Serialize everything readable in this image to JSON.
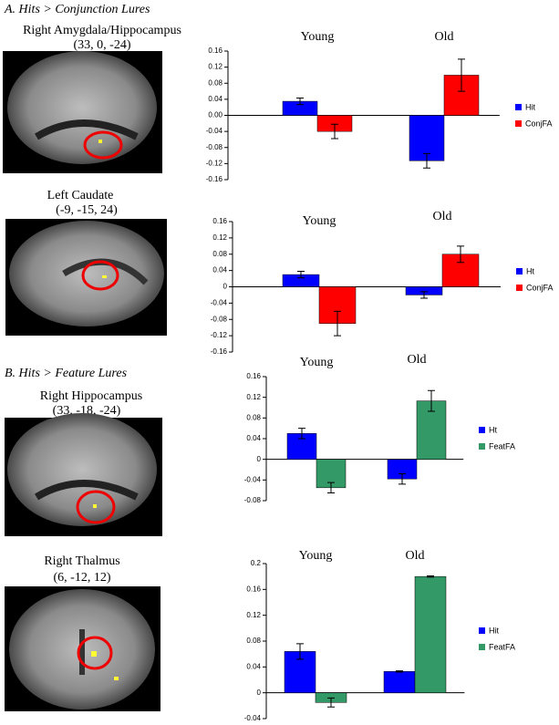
{
  "sections": [
    "A.  Hits > Conjunction Lures",
    "B.  Hits > Feature Lures"
  ],
  "regions": [
    {
      "name": "Right Amygdala/Hippocampus",
      "coords": "(33, 0, -24)"
    },
    {
      "name": "Left Caudate",
      "coords": "(-9, -15, 24)"
    },
    {
      "name": "Right Hippocampus",
      "coords": "(33, -18, -24)"
    },
    {
      "name": "Right Thalmus",
      "coords": "(6, -12, 12)"
    }
  ],
  "chart_data": [
    {
      "type": "bar",
      "categories": [
        "Young",
        "Old"
      ],
      "series": [
        {
          "name": "Hit",
          "color": "#0000ff",
          "values": [
            0.035,
            -0.113
          ],
          "errors": [
            0.008,
            0.018
          ]
        },
        {
          "name": "ConjFA",
          "color": "#ff0000",
          "values": [
            -0.04,
            0.1
          ],
          "errors": [
            0.018,
            0.04
          ]
        }
      ],
      "ylim": [
        -0.16,
        0.16
      ],
      "yticks": [
        0.16,
        0.12,
        0.08,
        0.04,
        {
          "value": 0,
          "label": "0.00"
        },
        -0.04,
        -0.08,
        -0.12,
        -0.16
      ]
    },
    {
      "type": "bar",
      "categories": [
        "Young",
        "Old"
      ],
      "series": [
        {
          "name": "Ht",
          "color": "#0000ff",
          "values": [
            0.03,
            -0.02
          ],
          "errors": [
            0.008,
            0.008
          ]
        },
        {
          "name": "ConjFA",
          "color": "#ff0000",
          "values": [
            -0.09,
            0.08
          ],
          "errors": [
            0.03,
            0.02
          ]
        }
      ],
      "ylim": [
        -0.16,
        0.16
      ],
      "yticks": [
        0.16,
        0.12,
        0.08,
        0.04,
        0,
        -0.04,
        -0.08,
        -0.12,
        -0.16
      ]
    },
    {
      "type": "bar",
      "categories": [
        "Young",
        "Old"
      ],
      "series": [
        {
          "name": "Ht",
          "color": "#0000ff",
          "values": [
            0.05,
            -0.038
          ],
          "errors": [
            0.01,
            0.01
          ]
        },
        {
          "name": "FeatFA",
          "color": "#339966",
          "values": [
            -0.055,
            0.113
          ],
          "errors": [
            0.01,
            0.02
          ]
        }
      ],
      "ylim": [
        -0.08,
        0.16
      ],
      "yticks": [
        0.16,
        0.12,
        0.08,
        0.04,
        0,
        -0.04,
        -0.08
      ]
    },
    {
      "type": "bar",
      "categories": [
        "Young",
        "Old"
      ],
      "series": [
        {
          "name": "Hit",
          "color": "#0000ff",
          "values": [
            0.064,
            0.033
          ],
          "errors": [
            0.012,
            0.001
          ]
        },
        {
          "name": "FeatFA",
          "color": "#339966",
          "values": [
            -0.015,
            0.18
          ],
          "errors": [
            0.007,
            0.001
          ]
        }
      ],
      "ylim": [
        -0.04,
        0.2
      ],
      "yticks": [
        0.2,
        0.16,
        0.12,
        0.08,
        0.04,
        0,
        -0.04
      ]
    }
  ]
}
